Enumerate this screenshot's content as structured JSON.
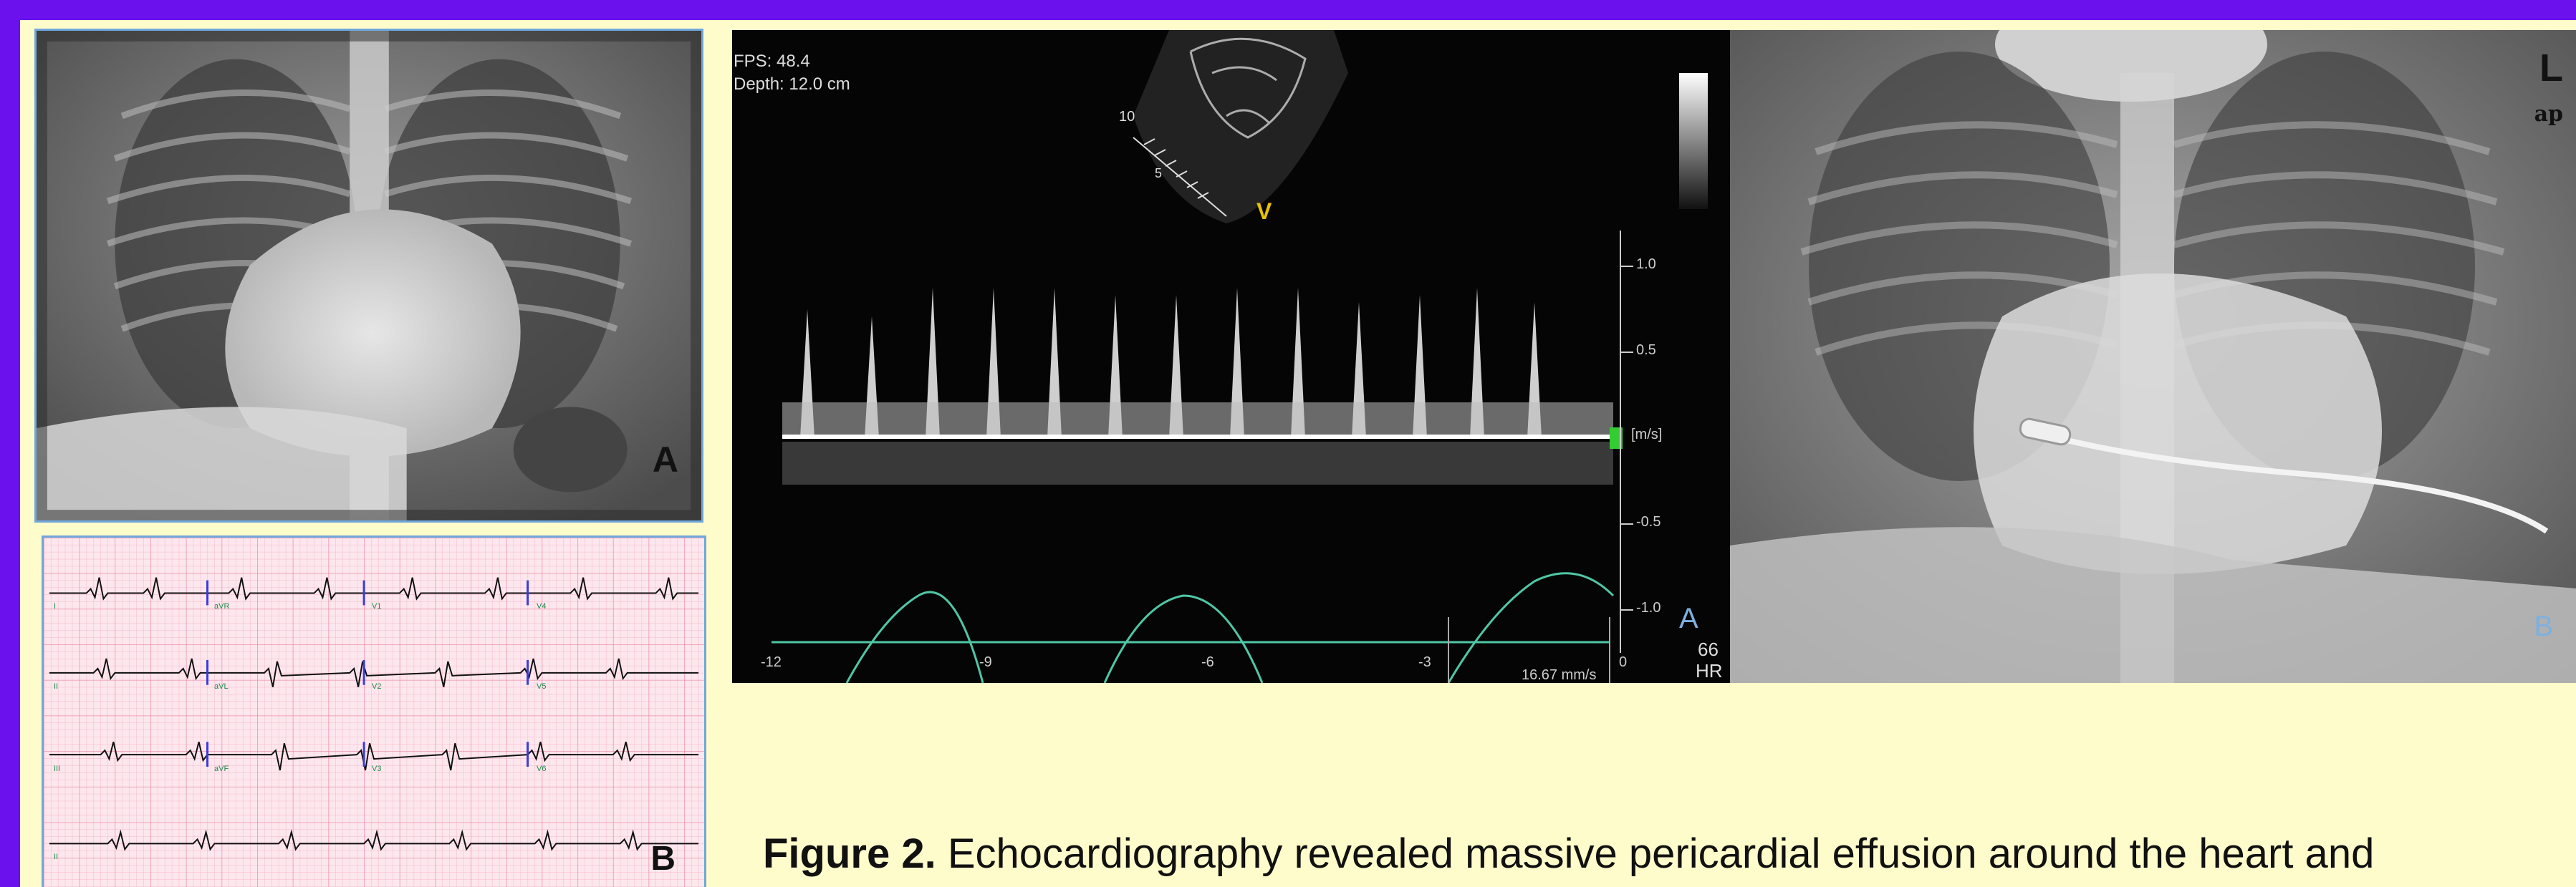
{
  "figure": {
    "label": "Figure 2.",
    "caption": "Echocardiography revealed massive pericardial effusion around the heart and"
  },
  "panel_left_top": {
    "letter": "A"
  },
  "panel_left_bottom": {
    "letter": "B",
    "lead_labels": [
      "I",
      "aVR",
      "V1",
      "V4",
      "II",
      "aVL",
      "V2",
      "V5",
      "III",
      "aVF",
      "V3",
      "V6",
      "II"
    ]
  },
  "echo": {
    "fps": "FPS: 48.4",
    "depth": "Depth: 12.0 cm",
    "scale_ticks": [
      "1.0",
      "0.5",
      "[m/s]",
      "-0.5",
      "-1.0"
    ],
    "time_ticks": [
      "-12",
      "-9",
      "-6",
      "-3",
      "0"
    ],
    "sweep": "16.67 mm/s",
    "hr_value": "66",
    "hr_label": "HR",
    "letter": "A",
    "probe_marker": "V",
    "depth_marks": [
      "10",
      "5"
    ]
  },
  "panel_right": {
    "side_marker": "L",
    "view": "ap",
    "letter": "B"
  }
}
